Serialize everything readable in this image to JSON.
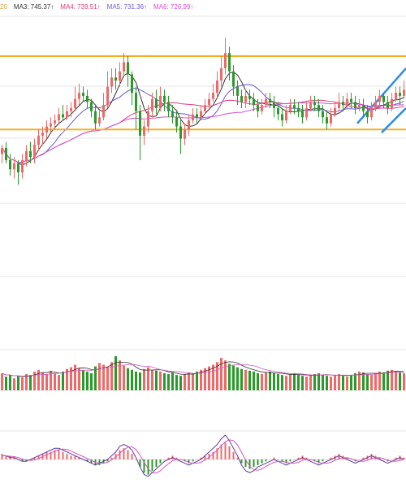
{
  "legend": {
    "items": [
      {
        "key": "ma2",
        "text": "20",
        "color": "#d49a3a"
      },
      {
        "key": "ma3",
        "text": "MA3: 745.37↑",
        "color": "#333333"
      },
      {
        "key": "ma4",
        "text": "MA4: 739.51↑",
        "color": "#e0407a"
      },
      {
        "key": "ma5",
        "text": "MA5: 731.36↑",
        "color": "#6b5ad8"
      },
      {
        "key": "ma6",
        "text": "MA6: 726.99↑",
        "color": "#d44fd4"
      }
    ]
  },
  "colors": {
    "up": "#f06868",
    "down": "#2a9a2a",
    "resistance": "#f2b01e",
    "trend": "#2f8ee8",
    "macd_dif": "#5a3aa8",
    "macd_dea": "#d25ab8",
    "grid": "#e6e6e6"
  },
  "chart_data": {
    "type": "candlestick",
    "price_range": [
      690,
      775
    ],
    "resistance_levels": [
      762,
      738
    ],
    "trendlines": [
      {
        "from": [
          88,
          740
        ],
        "to": [
          100,
          758
        ]
      },
      {
        "from": [
          94,
          737
        ],
        "to": [
          100,
          745
        ]
      }
    ],
    "candles": [
      [
        730,
        732,
        733,
        727
      ],
      [
        732,
        728,
        734,
        727
      ],
      [
        728,
        725,
        730,
        723
      ],
      [
        725,
        727,
        729,
        722
      ],
      [
        727,
        724,
        728,
        720
      ],
      [
        724,
        728,
        730,
        722
      ],
      [
        728,
        731,
        733,
        726
      ],
      [
        731,
        729,
        734,
        727
      ],
      [
        729,
        733,
        735,
        727
      ],
      [
        733,
        736,
        738,
        731
      ],
      [
        736,
        737,
        739,
        733
      ],
      [
        737,
        739,
        741,
        735
      ],
      [
        739,
        740,
        742,
        737
      ],
      [
        740,
        741,
        743,
        738
      ],
      [
        741,
        743,
        745,
        740
      ],
      [
        743,
        742,
        746,
        741
      ],
      [
        742,
        744,
        746,
        741
      ],
      [
        744,
        745,
        747,
        742
      ],
      [
        745,
        748,
        752,
        744
      ],
      [
        748,
        750,
        753,
        746
      ],
      [
        750,
        749,
        752,
        747
      ],
      [
        749,
        747,
        751,
        745
      ],
      [
        747,
        744,
        748,
        742
      ],
      [
        744,
        740,
        746,
        738
      ],
      [
        740,
        742,
        744,
        739
      ],
      [
        742,
        746,
        750,
        741
      ],
      [
        746,
        752,
        757,
        745
      ],
      [
        752,
        755,
        758,
        750
      ],
      [
        755,
        754,
        758,
        751
      ],
      [
        754,
        757,
        760,
        752
      ],
      [
        757,
        760,
        763,
        755
      ],
      [
        760,
        756,
        762,
        752
      ],
      [
        756,
        750,
        757,
        746
      ],
      [
        750,
        744,
        752,
        738
      ],
      [
        744,
        736,
        746,
        728
      ],
      [
        736,
        739,
        741,
        733
      ],
      [
        739,
        744,
        746,
        737
      ],
      [
        744,
        748,
        750,
        742
      ],
      [
        748,
        745,
        751,
        743
      ],
      [
        745,
        749,
        752,
        744
      ],
      [
        749,
        747,
        751,
        744
      ],
      [
        747,
        744,
        749,
        742
      ],
      [
        744,
        742,
        746,
        740
      ],
      [
        742,
        739,
        744,
        737
      ],
      [
        739,
        735,
        741,
        730
      ],
      [
        735,
        738,
        740,
        733
      ],
      [
        738,
        741,
        743,
        736
      ],
      [
        741,
        743,
        745,
        740
      ],
      [
        743,
        742,
        745,
        740
      ],
      [
        742,
        744,
        746,
        741
      ],
      [
        744,
        746,
        748,
        743
      ],
      [
        746,
        748,
        750,
        745
      ],
      [
        748,
        750,
        753,
        747
      ],
      [
        750,
        754,
        757,
        748
      ],
      [
        754,
        758,
        762,
        752
      ],
      [
        758,
        763,
        768,
        756
      ],
      [
        763,
        757,
        765,
        754
      ],
      [
        757,
        752,
        759,
        749
      ],
      [
        752,
        749,
        754,
        746
      ],
      [
        749,
        747,
        751,
        745
      ],
      [
        747,
        749,
        751,
        745
      ],
      [
        749,
        748,
        751,
        746
      ],
      [
        748,
        746,
        750,
        744
      ],
      [
        746,
        744,
        748,
        742
      ],
      [
        744,
        746,
        748,
        743
      ],
      [
        746,
        748,
        750,
        745
      ],
      [
        748,
        747,
        750,
        745
      ],
      [
        747,
        745,
        749,
        742
      ],
      [
        745,
        743,
        747,
        741
      ],
      [
        743,
        741,
        745,
        739
      ],
      [
        741,
        744,
        746,
        740
      ],
      [
        744,
        746,
        748,
        743
      ],
      [
        746,
        745,
        748,
        743
      ],
      [
        745,
        744,
        747,
        742
      ],
      [
        744,
        742,
        746,
        740
      ],
      [
        742,
        745,
        747,
        741
      ],
      [
        745,
        747,
        749,
        744
      ],
      [
        747,
        746,
        749,
        744
      ],
      [
        746,
        744,
        748,
        742
      ],
      [
        744,
        742,
        746,
        740
      ],
      [
        742,
        740,
        744,
        738
      ],
      [
        740,
        743,
        745,
        739
      ],
      [
        743,
        745,
        747,
        742
      ],
      [
        745,
        747,
        750,
        744
      ],
      [
        747,
        746,
        749,
        744
      ],
      [
        746,
        748,
        750,
        745
      ],
      [
        748,
        747,
        750,
        745
      ],
      [
        747,
        745,
        749,
        743
      ],
      [
        745,
        746,
        748,
        744
      ],
      [
        746,
        744,
        748,
        742
      ],
      [
        744,
        742,
        746,
        740
      ],
      [
        742,
        745,
        747,
        741
      ],
      [
        745,
        747,
        749,
        744
      ],
      [
        747,
        749,
        751,
        745
      ],
      [
        749,
        747,
        750,
        745
      ],
      [
        747,
        745,
        749,
        743
      ],
      [
        745,
        748,
        750,
        744
      ],
      [
        748,
        750,
        752,
        747
      ],
      [
        750,
        749,
        752,
        746
      ],
      [
        749,
        751,
        754,
        748
      ]
    ],
    "volume": [
      20,
      16,
      18,
      14,
      17,
      15,
      19,
      18,
      22,
      24,
      21,
      19,
      23,
      20,
      18,
      22,
      25,
      27,
      30,
      26,
      24,
      22,
      20,
      28,
      32,
      30,
      27,
      33,
      40,
      35,
      29,
      26,
      24,
      22,
      21,
      25,
      27,
      24,
      23,
      22,
      20,
      19,
      21,
      18,
      17,
      19,
      21,
      20,
      22,
      24,
      26,
      28,
      30,
      33,
      38,
      35,
      31,
      29,
      27,
      25,
      24,
      23,
      22,
      20,
      19,
      21,
      22,
      20,
      19,
      18,
      17,
      19,
      20,
      18,
      17,
      16,
      18,
      19,
      20,
      18,
      17,
      16,
      18,
      19,
      17,
      16,
      18,
      20,
      22,
      21,
      19,
      18,
      20,
      22,
      21,
      23,
      24,
      22,
      21,
      20
    ],
    "macd_hist": [
      3,
      2,
      2,
      1,
      0,
      -1,
      -1,
      0,
      1,
      2,
      3,
      4,
      4,
      5,
      5,
      4,
      3,
      2,
      2,
      1,
      0,
      -1,
      -2,
      -3,
      -3,
      -2,
      -1,
      1,
      3,
      5,
      6,
      5,
      3,
      0,
      -4,
      -7,
      -8,
      -6,
      -4,
      -2,
      0,
      1,
      2,
      1,
      0,
      -1,
      -2,
      -1,
      0,
      1,
      2,
      3,
      4,
      6,
      8,
      9,
      7,
      4,
      1,
      -2,
      -4,
      -5,
      -4,
      -3,
      -2,
      -1,
      0,
      1,
      0,
      -1,
      -2,
      -1,
      0,
      1,
      2,
      1,
      0,
      -1,
      -2,
      -1,
      0,
      1,
      2,
      3,
      2,
      1,
      0,
      -1,
      0,
      1,
      2,
      3,
      2,
      1,
      0,
      -1,
      0,
      1,
      2,
      1
    ],
    "macd_dif": [
      2,
      2,
      1,
      1,
      0,
      -1,
      -1,
      0,
      1,
      2,
      3,
      4,
      5,
      6,
      6,
      5,
      4,
      3,
      2,
      1,
      0,
      -1,
      -2,
      -3,
      -2,
      -1,
      0,
      2,
      4,
      7,
      8,
      7,
      5,
      1,
      -4,
      -8,
      -9,
      -7,
      -5,
      -3,
      -1,
      0,
      1,
      0,
      -1,
      -2,
      -3,
      -2,
      -1,
      0,
      2,
      4,
      6,
      8,
      11,
      13,
      10,
      6,
      2,
      -3,
      -6,
      -7,
      -6,
      -4,
      -3,
      -2,
      -1,
      0,
      -1,
      -2,
      -3,
      -2,
      -1,
      0,
      1,
      0,
      -1,
      -2,
      -3,
      -2,
      -1,
      0,
      1,
      2,
      1,
      0,
      -1,
      -2,
      -1,
      0,
      1,
      2,
      1,
      0,
      -1,
      -2,
      -1,
      0,
      1,
      0
    ]
  }
}
